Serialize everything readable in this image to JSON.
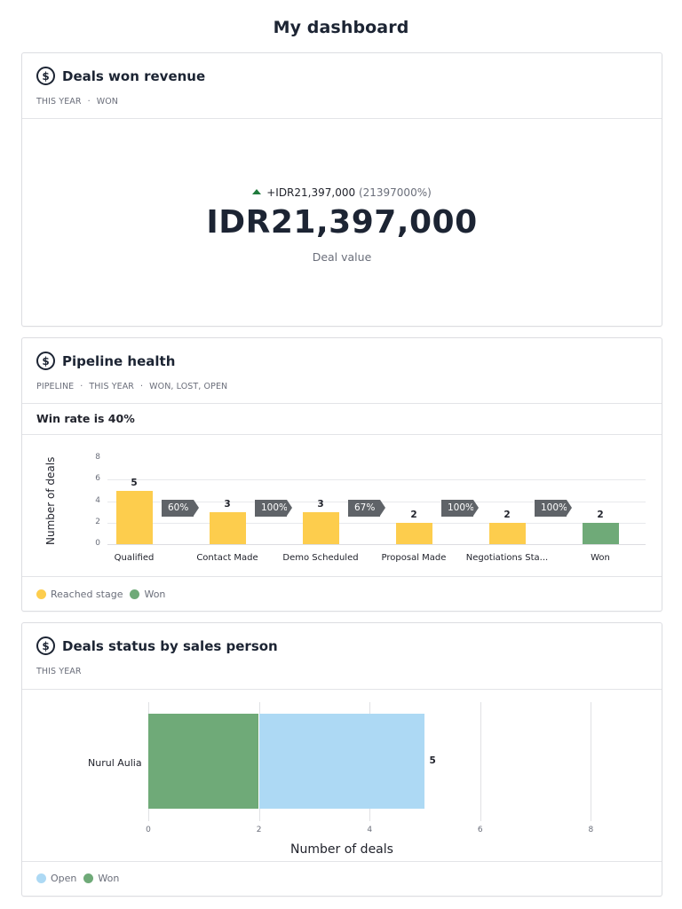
{
  "page": {
    "title": "My dashboard"
  },
  "cards": {
    "deals_won_revenue": {
      "icon": "dollar-circle-icon",
      "title": "Deals won revenue",
      "meta": [
        "THIS YEAR",
        "WON"
      ],
      "kpi": {
        "delta_arrow": "up",
        "delta_value": "+IDR21,397,000",
        "delta_percent": "(21397000%)",
        "value": "IDR21,397,000",
        "label": "Deal value",
        "delta_color": "#1f7a3c"
      }
    },
    "pipeline_health": {
      "icon": "dollar-circle-icon",
      "title": "Pipeline health",
      "meta": [
        "PIPELINE",
        "THIS YEAR",
        "WON, LOST, OPEN"
      ],
      "win_rate_text": "Win rate is 40%",
      "y_axis_label": "Number of deals",
      "y_ticks": [
        "8",
        "6",
        "4",
        "2",
        "0"
      ],
      "legend": [
        {
          "label": "Reached stage",
          "color": "#fdcd4d"
        },
        {
          "label": "Won",
          "color": "#6faa78"
        }
      ]
    },
    "deals_status_by_sales_person": {
      "icon": "dollar-circle-icon",
      "title": "Deals status by sales person",
      "meta": [
        "THIS YEAR"
      ],
      "person": "Nurul Aulia",
      "total_label": "5",
      "x_ticks": [
        "0",
        "2",
        "4",
        "6",
        "8"
      ],
      "x_axis_label": "Number of deals",
      "legend": [
        {
          "label": "Open",
          "color": "#add9f4"
        },
        {
          "label": "Won",
          "color": "#6faa78"
        }
      ]
    }
  },
  "chart_data": [
    {
      "type": "bar",
      "title": "Pipeline health",
      "subtitle": "Win rate is 40%",
      "categories": [
        "Qualified",
        "Contact Made",
        "Demo Scheduled",
        "Proposal Made",
        "Negotiations Sta...",
        "Won"
      ],
      "values": [
        5,
        3,
        3,
        2,
        2,
        2
      ],
      "bar_colors": [
        "#fdcd4d",
        "#fdcd4d",
        "#fdcd4d",
        "#fdcd4d",
        "#fdcd4d",
        "#6faa78"
      ],
      "conversion_rates": [
        "60%",
        "100%",
        "67%",
        "100%",
        "100%"
      ],
      "xlabel": "",
      "ylabel": "Number of deals",
      "ylim": [
        0,
        8
      ],
      "yticks": [
        0,
        2,
        4,
        6,
        8
      ],
      "grid": true,
      "legend": [
        "Reached stage",
        "Won"
      ],
      "legend_position": "bottom"
    },
    {
      "type": "bar",
      "orientation": "horizontal",
      "stacked": true,
      "title": "Deals status by sales person",
      "categories": [
        "Nurul Aulia"
      ],
      "series": [
        {
          "name": "Won",
          "values": [
            2
          ],
          "color": "#6faa78"
        },
        {
          "name": "Open",
          "values": [
            3
          ],
          "color": "#add9f4"
        }
      ],
      "totals": [
        5
      ],
      "xlabel": "Number of deals",
      "ylabel": "",
      "xlim": [
        0,
        8
      ],
      "xticks": [
        0,
        2,
        4,
        6,
        8
      ],
      "grid": true,
      "legend": [
        "Open",
        "Won"
      ],
      "legend_position": "bottom"
    }
  ]
}
